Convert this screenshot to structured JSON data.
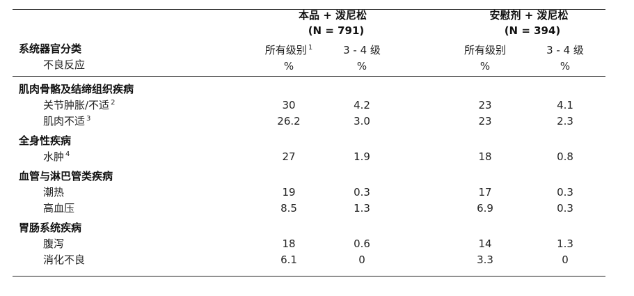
{
  "table": {
    "groups": [
      {
        "name": "本品 + 泼尼松",
        "n": "(N = 791)"
      },
      {
        "name": "安慰剂 + 泼尼松",
        "n": "(N = 394)"
      }
    ],
    "row_header": [
      "系统器官分类",
      "不良反应"
    ],
    "subheaders": [
      {
        "label": "所有级别",
        "note": "1",
        "unit": "%"
      },
      {
        "label": "3 - 4 级",
        "unit": "%"
      },
      {
        "label": "所有级别",
        "unit": "%"
      },
      {
        "label": "3 - 4 级",
        "unit": "%"
      }
    ],
    "sections": [
      {
        "name": "肌肉骨骼及结缔组织疾病",
        "rows": [
          {
            "label": "关节肿胀/不适",
            "note": "2",
            "values": [
              "30",
              "4.2",
              "23",
              "4.1"
            ]
          },
          {
            "label": "肌肉不适",
            "note": "3",
            "values": [
              "26.2",
              "3.0",
              "23",
              "2.3"
            ]
          }
        ]
      },
      {
        "name": "全身性疾病",
        "rows": [
          {
            "label": "水肿",
            "note": "4",
            "values": [
              "27",
              "1.9",
              "18",
              "0.8"
            ]
          }
        ]
      },
      {
        "name": "血管与淋巴管类疾病",
        "rows": [
          {
            "label": "潮热",
            "values": [
              "19",
              "0.3",
              "17",
              "0.3"
            ]
          },
          {
            "label": "高血压",
            "values": [
              "8.5",
              "1.3",
              "6.9",
              "0.3"
            ]
          }
        ]
      },
      {
        "name": "胃肠系统疾病",
        "rows": [
          {
            "label": "腹泻",
            "values": [
              "18",
              "0.6",
              "14",
              "1.3"
            ]
          },
          {
            "label": "消化不良",
            "values": [
              "6.1",
              "0",
              "3.3",
              "0"
            ]
          }
        ]
      }
    ]
  }
}
